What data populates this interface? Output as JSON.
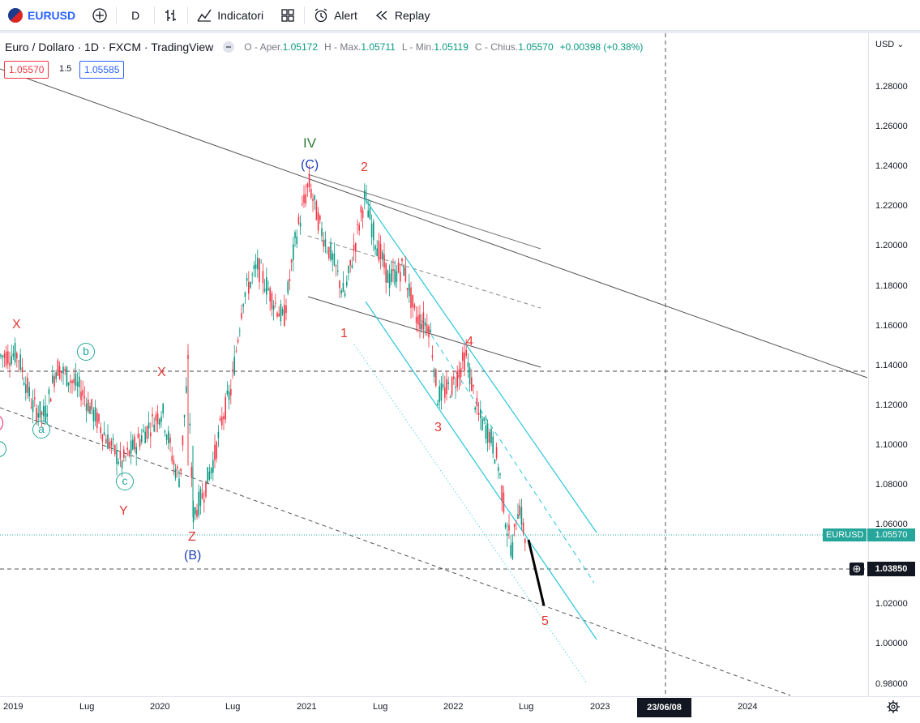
{
  "toolbar": {
    "symbol": "EURUSD",
    "interval": "D",
    "indicators_label": "Indicatori",
    "alert_label": "Alert",
    "replay_label": "Replay"
  },
  "legend": {
    "title": "Euro / Dollaro · 1D · FXCM · TradingView",
    "open_label": "O - Aper.",
    "open": "1.05172",
    "high_label": "H - Max.",
    "high": "1.05711",
    "low_label": "L - Min.",
    "low": "1.05119",
    "close_label": "C - Chius.",
    "close": "1.05570",
    "change": "+0.00398 (+0.38%)"
  },
  "pricebar": {
    "sell": "1.05570",
    "spread": "1.5",
    "buy": "1.05585"
  },
  "currency": "USD",
  "price_axis": [
    "1.28000",
    "1.26000",
    "1.24000",
    "1.22000",
    "1.20000",
    "1.18000",
    "1.16000",
    "1.14000",
    "1.12000",
    "1.10000",
    "1.08000",
    "1.06000",
    "1.02000",
    "1.00000",
    "0.98000"
  ],
  "time_axis": [
    "2019",
    "Lug",
    "2020",
    "Lug",
    "2021",
    "Lug",
    "2022",
    "Lug",
    "2023",
    "2024"
  ],
  "crosshair_date": "23/06/08",
  "crosshair_price": "1.03850",
  "current_symbol_tag": "EURUSD",
  "current_price": "1.05570",
  "wave_labels": {
    "iv": "IV",
    "c_caps": "(C)",
    "b_caps": "(B)",
    "w2": "2",
    "w1": "1",
    "w3": "3",
    "w4": "4",
    "w5": "5",
    "x1": "X",
    "x2": "X",
    "y": "Y",
    "z": "Z",
    "a": "a",
    "b": "b",
    "c": "c"
  },
  "colors": {
    "up": "#089981",
    "down": "#f23645",
    "channel": "#26c6da",
    "red_label": "#e53935",
    "blue_label": "#1e40c0",
    "green_label": "#2e7d32",
    "teal_circle": "#26a69a"
  },
  "chart_data": {
    "type": "candlestick",
    "series": [
      {
        "name": "Euro / Dollaro",
        "close": [
          1.145,
          1.13,
          1.12,
          1.105,
          1.112,
          1.095,
          1.09,
          1.115,
          1.1,
          1.08,
          1.096,
          1.085,
          1.105,
          1.168,
          1.18,
          1.192,
          1.17,
          1.215,
          1.225,
          1.21,
          1.19,
          1.195,
          1.205,
          1.22,
          1.215,
          1.185,
          1.175,
          1.178,
          1.163,
          1.16,
          1.12,
          1.135,
          1.12,
          1.098,
          1.085,
          1.075,
          1.06,
          1.04,
          1.06,
          1.05557
        ]
      }
    ],
    "x_range": [
      "2018-10",
      "2022-07"
    ],
    "ylim": [
      0.975,
      1.29
    ]
  }
}
